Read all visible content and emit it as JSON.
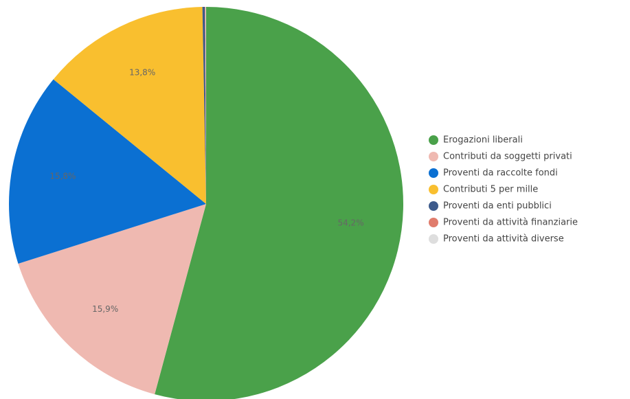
{
  "chart_data": {
    "type": "pie",
    "categories": [
      "Erogazioni liberali",
      "Contributi da soggetti privati",
      "Proventi da raccolte fondi",
      "Contributi 5 per mille",
      "Proventi da enti pubblici",
      "Proventi da attività finanziarie",
      "Proventi da attività diverse"
    ],
    "values": [
      54.2,
      15.9,
      15.8,
      13.8,
      0.2,
      0.05,
      0.05
    ],
    "value_labels": [
      "54,2%",
      "15,9%",
      "15,8%",
      "13,8%",
      null,
      null,
      null
    ],
    "colors": [
      "#4aa14a",
      "#efb9b1",
      "#0b70d2",
      "#f9bf2f",
      "#3e5b8c",
      "#e07c6c",
      "#dedede"
    ],
    "legend": "right"
  }
}
